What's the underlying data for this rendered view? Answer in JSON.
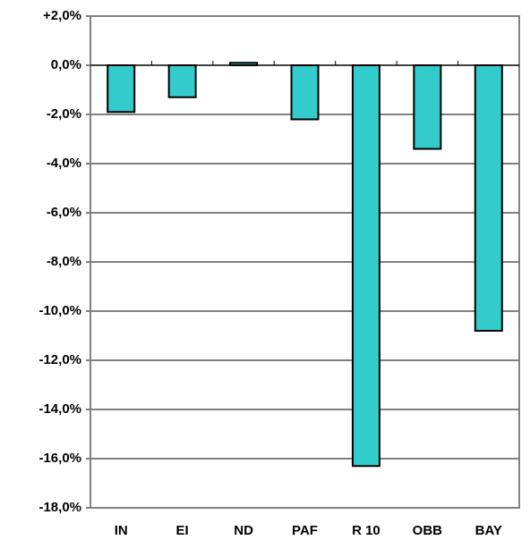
{
  "chart_data": {
    "type": "bar",
    "categories": [
      "IN",
      "EI",
      "ND",
      "PAF",
      "R 10",
      "OBB",
      "BAY"
    ],
    "values": [
      -1.9,
      -1.3,
      0.1,
      -2.2,
      -16.3,
      -3.4,
      -10.8
    ],
    "color": "#33cccc",
    "ylim": [
      -18,
      2
    ],
    "yticks": [
      {
        "value": 2,
        "label": "+2,0%"
      },
      {
        "value": 0,
        "label": "0,0%"
      },
      {
        "value": -2,
        "label": "-2,0%"
      },
      {
        "value": -4,
        "label": "-4,0%"
      },
      {
        "value": -6,
        "label": "-6,0%"
      },
      {
        "value": -8,
        "label": "-8,0%"
      },
      {
        "value": -10,
        "label": "-10,0%"
      },
      {
        "value": -12,
        "label": "-12,0%"
      },
      {
        "value": -14,
        "label": "-14,0%"
      },
      {
        "value": -16,
        "label": "-16,0%"
      },
      {
        "value": -18,
        "label": "-18,0%"
      }
    ],
    "grid": true
  }
}
